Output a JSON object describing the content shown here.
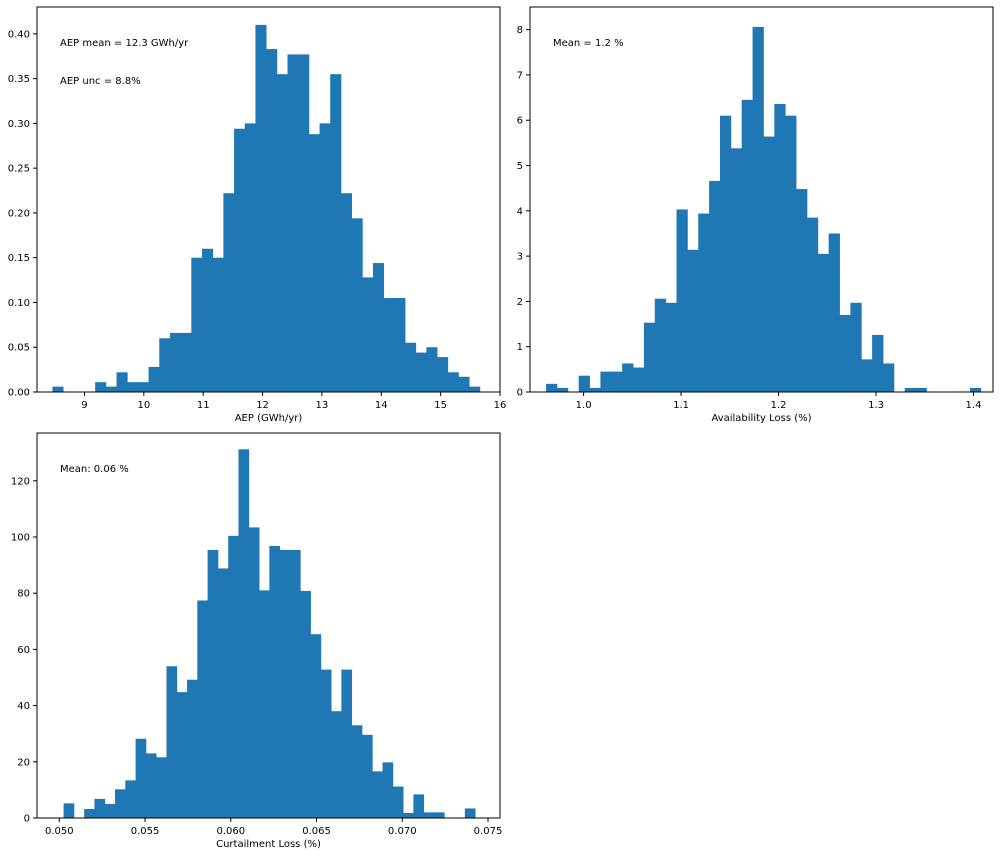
{
  "colors": {
    "bar": "#1f77b4",
    "axis": "#000000",
    "background": "#ffffff"
  },
  "chart_data": [
    {
      "type": "bar",
      "subtype": "histogram",
      "title": "",
      "xlabel": "AEP (GWh/yr)",
      "ylabel": "",
      "xlim": [
        8.2,
        16.0
      ],
      "ylim": [
        0,
        0.43
      ],
      "xticks": [
        9,
        10,
        11,
        12,
        13,
        14,
        15,
        16
      ],
      "yticks": [
        "0.00",
        "0.05",
        "0.10",
        "0.15",
        "0.20",
        "0.25",
        "0.30",
        "0.35",
        "0.40"
      ],
      "annotations": [
        "AEP mean = 12.3 GWh/yr",
        "AEP unc = 8.8%"
      ],
      "bin_start": 8.46,
      "bin_width": 0.18,
      "values": [
        0.006,
        0.0,
        0.0,
        0.0,
        0.011,
        0.006,
        0.022,
        0.011,
        0.011,
        0.028,
        0.06,
        0.066,
        0.066,
        0.15,
        0.16,
        0.15,
        0.222,
        0.294,
        0.3,
        0.41,
        0.383,
        0.355,
        0.377,
        0.377,
        0.288,
        0.3,
        0.355,
        0.222,
        0.194,
        0.128,
        0.144,
        0.105,
        0.105,
        0.055,
        0.044,
        0.05,
        0.039,
        0.022,
        0.017,
        0.006
      ],
      "grid": false,
      "legend": "none"
    },
    {
      "type": "bar",
      "subtype": "histogram",
      "title": "",
      "xlabel": "Availability Loss (%)",
      "ylabel": "",
      "xlim": [
        0.945,
        1.42
      ],
      "ylim": [
        0,
        8.5
      ],
      "xticks": [
        "1.0",
        "1.1",
        "1.2",
        "1.3",
        "1.4"
      ],
      "yticks": [
        0,
        1,
        2,
        3,
        4,
        5,
        6,
        7,
        8
      ],
      "annotations": [
        "Mean = 1.2 %"
      ],
      "bin_start": 0.9615,
      "bin_width": 0.01115,
      "values": [
        0.18,
        0.09,
        0,
        0.36,
        0.09,
        0.45,
        0.45,
        0.63,
        0.54,
        1.53,
        2.06,
        1.97,
        4.03,
        3.14,
        3.94,
        4.66,
        6.1,
        5.38,
        6.45,
        8.06,
        5.64,
        6.36,
        6.1,
        4.48,
        3.85,
        3.05,
        3.5,
        1.7,
        1.97,
        0.72,
        1.26,
        0.63,
        0,
        0.09,
        0.09,
        0,
        0,
        0,
        0,
        0.09
      ],
      "grid": false,
      "legend": "none"
    },
    {
      "type": "bar",
      "subtype": "histogram",
      "title": "",
      "xlabel": "Curtailment Loss (%)",
      "ylabel": "",
      "xlim": [
        0.0487,
        0.0757
      ],
      "ylim": [
        0,
        137
      ],
      "xticks": [
        "0.050",
        "0.055",
        "0.060",
        "0.065",
        "0.070",
        "0.075"
      ],
      "yticks": [
        0,
        20,
        40,
        60,
        80,
        100,
        120
      ],
      "annotations": [
        "Mean: 0.06 %"
      ],
      "bin_start": 0.05025,
      "bin_width": 0.0006,
      "values": [
        5.2,
        0,
        3.2,
        6.8,
        5.0,
        10.2,
        13.4,
        28.2,
        23.0,
        21.6,
        54.0,
        44.8,
        49.2,
        77.4,
        95.4,
        88.8,
        100.4,
        131.2,
        103.4,
        81.0,
        96.8,
        95.4,
        95.4,
        80.8,
        65.4,
        52.8,
        38.0,
        52.8,
        33.0,
        29.6,
        16.6,
        19.8,
        11.2,
        1.8,
        8.4,
        2.0,
        2.0,
        0,
        0,
        3.4
      ],
      "grid": false,
      "legend": "none"
    }
  ]
}
